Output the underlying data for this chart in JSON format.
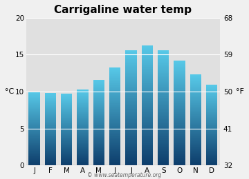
{
  "title": "Carrigaline water temp",
  "months": [
    "J",
    "F",
    "M",
    "A",
    "M",
    "J",
    "J",
    "A",
    "S",
    "O",
    "N",
    "D"
  ],
  "values": [
    10.0,
    9.8,
    9.7,
    10.3,
    11.6,
    13.3,
    15.6,
    16.3,
    15.6,
    14.2,
    12.3,
    10.9
  ],
  "ylabel_left": "°C",
  "ylabel_right": "°F",
  "ylim": [
    0,
    20
  ],
  "yticks_left": [
    0,
    5,
    10,
    15,
    20
  ],
  "yticks_right_labels": [
    "32",
    "41",
    "50",
    "59",
    "68"
  ],
  "bar_color_top": "#57c9e8",
  "bar_color_bottom": "#0d3d6b",
  "bg_color": "#e0e0e0",
  "fig_color": "#f0f0f0",
  "watermark": "© www.seatemperature.org",
  "title_fontsize": 11,
  "tick_fontsize": 7.5,
  "label_fontsize": 8,
  "bar_width": 0.7,
  "num_gradient_steps": 200
}
